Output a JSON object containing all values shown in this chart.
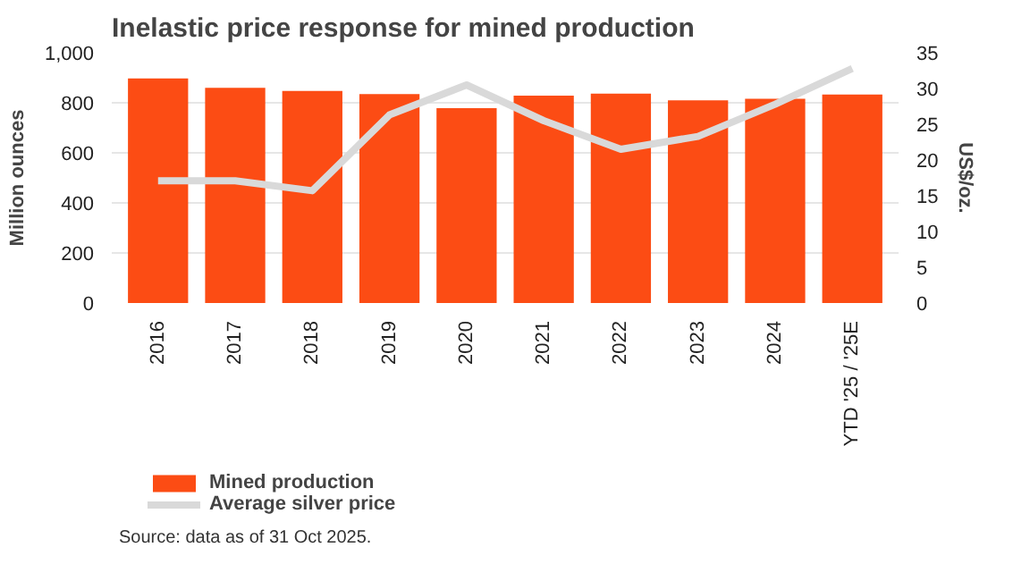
{
  "chart_data": {
    "type": "bar",
    "title": "Inelastic price response for mined production",
    "categories": [
      "2016",
      "2017",
      "2018",
      "2019",
      "2020",
      "2021",
      "2022",
      "2023",
      "2024",
      "YTD '25 / '25E"
    ],
    "series": [
      {
        "name": "Mined production",
        "color": "#fc4c14",
        "values": [
          897,
          860,
          847,
          835,
          779,
          829,
          837,
          810,
          816,
          833
        ]
      },
      {
        "name": "Average silver price",
        "type": "line",
        "axis": "y2",
        "color": "#d9d9d9",
        "values": [
          17.1,
          17.1,
          15.7,
          26.3,
          30.5,
          25.5,
          21.5,
          23.3,
          27.8,
          32.8
        ]
      }
    ],
    "ylabel": "Million ounces",
    "y2label": "US$/oz.",
    "ylim": [
      0,
      1000
    ],
    "yticks": [
      0,
      200,
      400,
      600,
      800,
      {
        "value": 1000,
        "label": "1,000"
      }
    ],
    "y2lim": [
      0,
      35
    ],
    "y2ticks": [
      0,
      5,
      10,
      15,
      20,
      25,
      30,
      35
    ],
    "grid": "y",
    "legend": "bottom left",
    "annotations": [
      "Source: data as of 31 Oct 2025."
    ]
  }
}
